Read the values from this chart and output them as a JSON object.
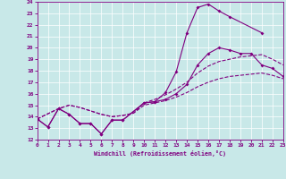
{
  "xlabel": "Windchill (Refroidissement éolien,°C)",
  "xlim": [
    0,
    23
  ],
  "ylim": [
    12,
    24
  ],
  "xticks": [
    0,
    1,
    2,
    3,
    4,
    5,
    6,
    7,
    8,
    9,
    10,
    11,
    12,
    13,
    14,
    15,
    16,
    17,
    18,
    19,
    20,
    21,
    22,
    23
  ],
  "yticks": [
    12,
    13,
    14,
    15,
    16,
    17,
    18,
    19,
    20,
    21,
    22,
    23,
    24
  ],
  "color": "#800080",
  "bg_color": "#c8e8e8",
  "curve1_x": [
    0,
    1,
    2,
    3,
    4,
    5,
    6,
    7,
    8,
    10,
    11,
    12,
    13,
    14,
    15,
    16,
    17,
    18,
    21
  ],
  "curve1_y": [
    13.8,
    13.1,
    14.7,
    14.2,
    13.4,
    13.4,
    12.5,
    13.7,
    13.7,
    15.2,
    15.3,
    16.1,
    17.9,
    21.3,
    23.5,
    23.8,
    23.2,
    22.7,
    21.3
  ],
  "curve2_x": [
    0,
    1,
    2,
    3,
    4,
    5,
    6,
    7,
    8,
    10,
    11,
    12,
    13,
    14,
    15,
    16,
    17,
    18,
    19,
    20,
    21,
    22,
    23
  ],
  "curve2_y": [
    13.8,
    13.1,
    14.7,
    14.2,
    13.4,
    13.4,
    12.5,
    13.7,
    13.7,
    15.2,
    15.3,
    15.5,
    16.0,
    16.8,
    18.5,
    19.5,
    20.0,
    19.8,
    19.5,
    19.5,
    18.5,
    18.2,
    17.5
  ],
  "curve3_x": [
    0,
    2,
    3,
    4,
    5,
    6,
    7,
    8,
    9,
    10,
    11,
    12,
    13,
    14,
    15,
    16,
    17,
    18,
    19,
    20,
    21,
    22,
    23
  ],
  "curve3_y": [
    13.8,
    14.7,
    15.0,
    14.8,
    14.5,
    14.2,
    14.0,
    14.1,
    14.3,
    15.0,
    15.2,
    15.4,
    15.7,
    16.1,
    16.6,
    17.0,
    17.3,
    17.5,
    17.6,
    17.7,
    17.8,
    17.6,
    17.3
  ],
  "curve4_x": [
    0,
    2,
    3,
    4,
    5,
    6,
    7,
    8,
    9,
    10,
    11,
    12,
    13,
    14,
    15,
    16,
    17,
    18,
    19,
    20,
    21,
    22,
    23
  ],
  "curve4_y": [
    13.8,
    14.7,
    15.0,
    14.8,
    14.5,
    14.2,
    14.0,
    14.1,
    14.3,
    15.2,
    15.5,
    15.9,
    16.4,
    17.0,
    17.8,
    18.4,
    18.8,
    19.0,
    19.2,
    19.3,
    19.4,
    19.0,
    18.5
  ]
}
